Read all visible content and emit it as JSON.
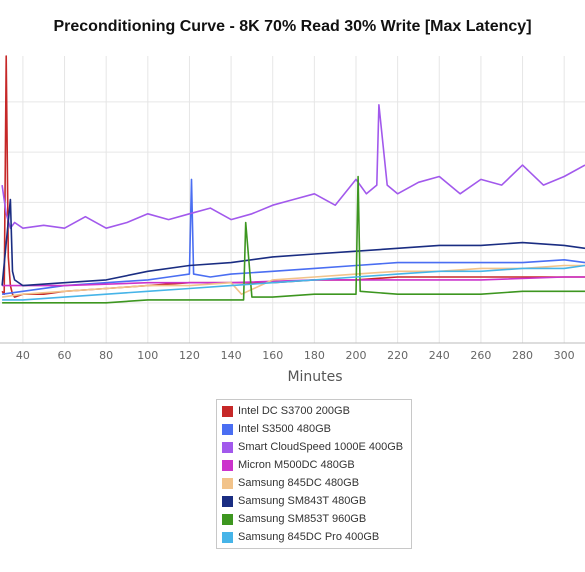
{
  "title": "Preconditioning Curve - 8K 70% Read 30% Write [Max Latency]",
  "chart_data": {
    "type": "line",
    "title": "Preconditioning Curve - 8K 70% Read 30% Write [Max Latency]",
    "xlabel": "Minutes",
    "ylabel": "",
    "xlim": [
      29,
      310
    ],
    "xticks": [
      40,
      60,
      80,
      100,
      120,
      140,
      160,
      180,
      200,
      220,
      240,
      260,
      280,
      300
    ],
    "xtick_labels": [
      "40",
      "60",
      "80",
      "100",
      "120",
      "140",
      "160",
      "180",
      "200",
      "220",
      "240",
      "260",
      "280",
      "300"
    ],
    "ylim": [
      0,
      100
    ],
    "grid": true,
    "legend_position": "bottom",
    "series": [
      {
        "name": "Intel DC S3700 200GB",
        "color": "#c62828",
        "x": [
          30,
          31,
          32,
          33,
          34,
          35,
          36,
          40,
          50,
          60,
          80,
          100,
          120,
          140,
          160,
          180,
          200,
          220,
          240,
          260,
          280,
          300,
          310
        ],
        "y": [
          18,
          17,
          100,
          30,
          20,
          17,
          16,
          17,
          17,
          18,
          19,
          20,
          21,
          21,
          21,
          22,
          22,
          23,
          23,
          23,
          23,
          23,
          23
        ]
      },
      {
        "name": "Intel S3500 480GB",
        "color": "#4a6ef2",
        "x": [
          30,
          40,
          60,
          80,
          100,
          110,
          120,
          121,
          122,
          130,
          140,
          160,
          180,
          200,
          220,
          240,
          260,
          280,
          300,
          310
        ],
        "y": [
          17,
          18,
          20,
          21,
          22,
          23,
          24,
          57,
          24,
          23,
          24,
          25,
          26,
          27,
          28,
          28,
          28,
          28,
          29,
          28
        ]
      },
      {
        "name": "Smart CloudSpeed 1000E 400GB",
        "color": "#a259ec",
        "x": [
          30,
          32,
          34,
          36,
          40,
          50,
          60,
          70,
          80,
          90,
          100,
          110,
          120,
          130,
          140,
          150,
          160,
          170,
          180,
          190,
          200,
          205,
          210,
          211,
          215,
          220,
          230,
          240,
          250,
          260,
          270,
          280,
          290,
          300,
          310
        ],
        "y": [
          55,
          45,
          40,
          42,
          40,
          41,
          40,
          44,
          40,
          42,
          45,
          43,
          45,
          47,
          43,
          45,
          48,
          50,
          52,
          48,
          57,
          52,
          55,
          83,
          55,
          52,
          56,
          58,
          52,
          57,
          55,
          62,
          55,
          58,
          62
        ]
      },
      {
        "name": "Micron M500DC 480GB",
        "color": "#cc33cc",
        "x": [
          30,
          60,
          100,
          140,
          180,
          220,
          260,
          300,
          310
        ],
        "y": [
          20,
          20,
          21,
          21,
          22,
          22,
          22,
          23,
          23
        ]
      },
      {
        "name": "Samsung 845DC 480GB",
        "color": "#f2c38a",
        "x": [
          30,
          40,
          60,
          80,
          100,
          120,
          140,
          145,
          160,
          180,
          200,
          220,
          240,
          260,
          280,
          300,
          310
        ],
        "y": [
          16,
          17,
          18,
          19,
          20,
          20,
          21,
          17,
          22,
          23,
          24,
          25,
          25,
          26,
          26,
          27,
          27
        ]
      },
      {
        "name": "Samsung SM843T 480GB",
        "color": "#1a2d82",
        "x": [
          30,
          34,
          35,
          36,
          40,
          60,
          80,
          100,
          120,
          140,
          160,
          180,
          200,
          220,
          240,
          260,
          280,
          300,
          310
        ],
        "y": [
          20,
          50,
          25,
          22,
          20,
          21,
          22,
          25,
          27,
          28,
          30,
          31,
          32,
          33,
          34,
          34,
          35,
          34,
          33
        ]
      },
      {
        "name": "Samsung SM853T 960GB",
        "color": "#3d9620",
        "x": [
          30,
          40,
          60,
          80,
          100,
          120,
          140,
          146,
          147,
          150,
          160,
          180,
          200,
          201,
          202,
          220,
          240,
          260,
          280,
          300,
          310
        ],
        "y": [
          14,
          14,
          14,
          14,
          15,
          15,
          15,
          15,
          42,
          16,
          16,
          17,
          17,
          58,
          18,
          17,
          17,
          17,
          18,
          18,
          18
        ]
      },
      {
        "name": "Samsung 845DC Pro 400GB",
        "color": "#46b4e8",
        "x": [
          30,
          40,
          60,
          80,
          100,
          120,
          140,
          160,
          180,
          200,
          220,
          240,
          260,
          280,
          300,
          310
        ],
        "y": [
          15,
          15,
          16,
          17,
          18,
          19,
          20,
          21,
          22,
          23,
          24,
          25,
          25,
          26,
          26,
          27
        ]
      }
    ]
  }
}
